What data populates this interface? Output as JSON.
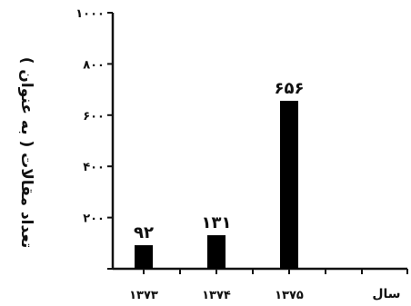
{
  "chart_data": {
    "type": "bar",
    "categories": [
      "۱۳۷۳",
      "۱۳۷۴",
      "۱۳۷۵"
    ],
    "values": [
      92,
      131,
      656
    ],
    "data_labels": [
      "۹۲",
      "۱۳۱",
      "۶۵۶"
    ],
    "xlabel": "سال",
    "ylabel": "تعداد مقالات ( به عنوان )",
    "ylim": [
      0,
      1000
    ],
    "yticks": [
      0,
      200,
      400,
      600,
      800,
      1000
    ],
    "ytick_labels": [
      "",
      "۲۰۰",
      "۴۰۰",
      "۶۰۰",
      "۸۰۰",
      "۱۰۰۰"
    ],
    "grid": false,
    "legend": "none",
    "bar_color": "#000000"
  }
}
